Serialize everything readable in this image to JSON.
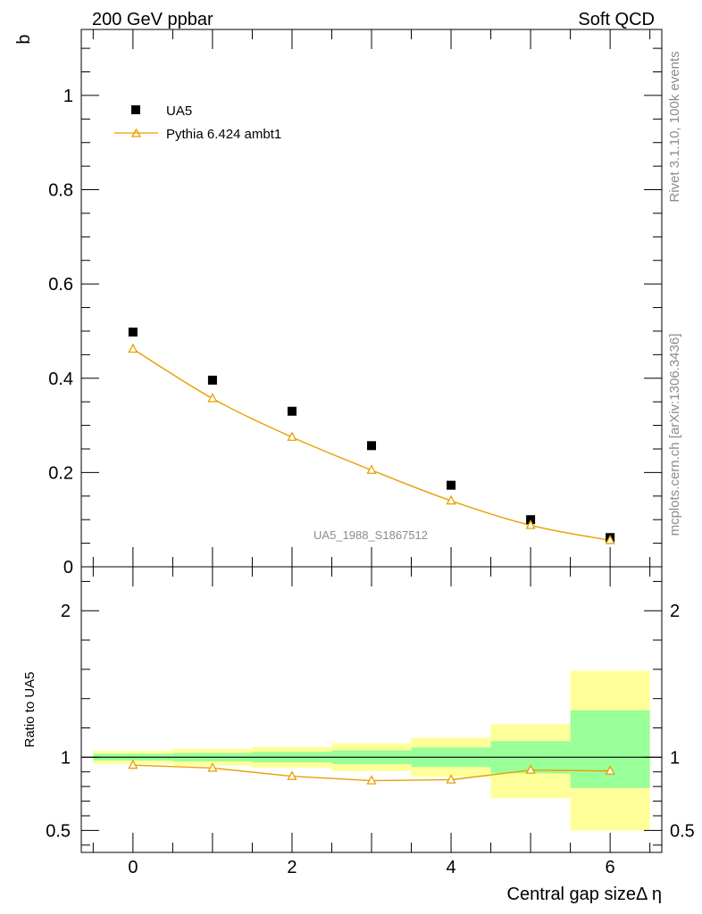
{
  "header": {
    "left": "200 GeV ppbar",
    "right": "Soft QCD"
  },
  "side_labels": {
    "top": "Rivet 3.1.10,  100k events",
    "bottom": "mcplots.cern.ch [arXiv:1306.3436]"
  },
  "chart_data": {
    "type": "scatter",
    "x_label": "Central gap sizeΔ η",
    "x_range": [
      -0.65,
      6.65
    ],
    "x_ticks": [
      0,
      2,
      4,
      6
    ],
    "x_tick_labels": [
      "0",
      "2",
      "4",
      "6"
    ],
    "main": {
      "ylabel": "b",
      "ylim": [
        0,
        1.14
      ],
      "y_ticks": [
        0,
        0.2,
        0.4,
        0.6,
        0.8,
        1
      ],
      "y_tick_labels": [
        "0",
        "0.2",
        "0.4",
        "0.6",
        "0.8",
        "1"
      ],
      "watermark": "UA5_1988_S1867512",
      "legend_position": "top-left",
      "series": [
        {
          "name": "UA5",
          "marker": "filled-square",
          "color": "#000000",
          "x": [
            0,
            1,
            2,
            3,
            4,
            5,
            6
          ],
          "y": [
            0.498,
            0.396,
            0.33,
            0.257,
            0.173,
            0.1,
            0.062
          ]
        },
        {
          "name": "Pythia 6.424 ambt1",
          "marker": "open-triangle",
          "color": "#e8a000",
          "x": [
            0,
            1,
            2,
            3,
            4,
            5,
            6
          ],
          "y": [
            0.462,
            0.357,
            0.275,
            0.205,
            0.14,
            0.088,
            0.056
          ]
        }
      ]
    },
    "ratio": {
      "ylabel": "Ratio to UA5",
      "ylim": [
        0.35,
        2.3
      ],
      "y_ticks": [
        0.5,
        1,
        2
      ],
      "y_tick_labels": [
        "0.5",
        "1",
        "2"
      ],
      "reference_line": 1,
      "bands": [
        {
          "x_low": -0.5,
          "x_high": 0.5,
          "inner": [
            0.977,
            1.023
          ],
          "outer": [
            0.955,
            1.045
          ]
        },
        {
          "x_low": 0.5,
          "x_high": 1.5,
          "inner": [
            0.971,
            1.029
          ],
          "outer": [
            0.943,
            1.057
          ]
        },
        {
          "x_low": 1.5,
          "x_high": 2.5,
          "inner": [
            0.964,
            1.036
          ],
          "outer": [
            0.929,
            1.071
          ]
        },
        {
          "x_low": 2.5,
          "x_high": 3.5,
          "inner": [
            0.953,
            1.047
          ],
          "outer": [
            0.905,
            1.095
          ]
        },
        {
          "x_low": 3.5,
          "x_high": 4.5,
          "inner": [
            0.933,
            1.067
          ],
          "outer": [
            0.867,
            1.133
          ]
        },
        {
          "x_low": 4.5,
          "x_high": 5.5,
          "inner": [
            0.89,
            1.11
          ],
          "outer": [
            0.72,
            1.225
          ]
        },
        {
          "x_low": 5.5,
          "x_high": 6.5,
          "inner": [
            0.79,
            1.32
          ],
          "outer": [
            0.5,
            1.59
          ]
        }
      ],
      "band_colors": {
        "inner": "#99ff99",
        "outer": "#ffff99"
      },
      "series": [
        {
          "name": "Pythia 6.424 ambt1",
          "color": "#e8a000",
          "x": [
            0,
            1,
            2,
            3,
            4,
            5,
            6
          ],
          "y": [
            0.946,
            0.926,
            0.87,
            0.84,
            0.846,
            0.912,
            0.906
          ]
        }
      ]
    }
  }
}
